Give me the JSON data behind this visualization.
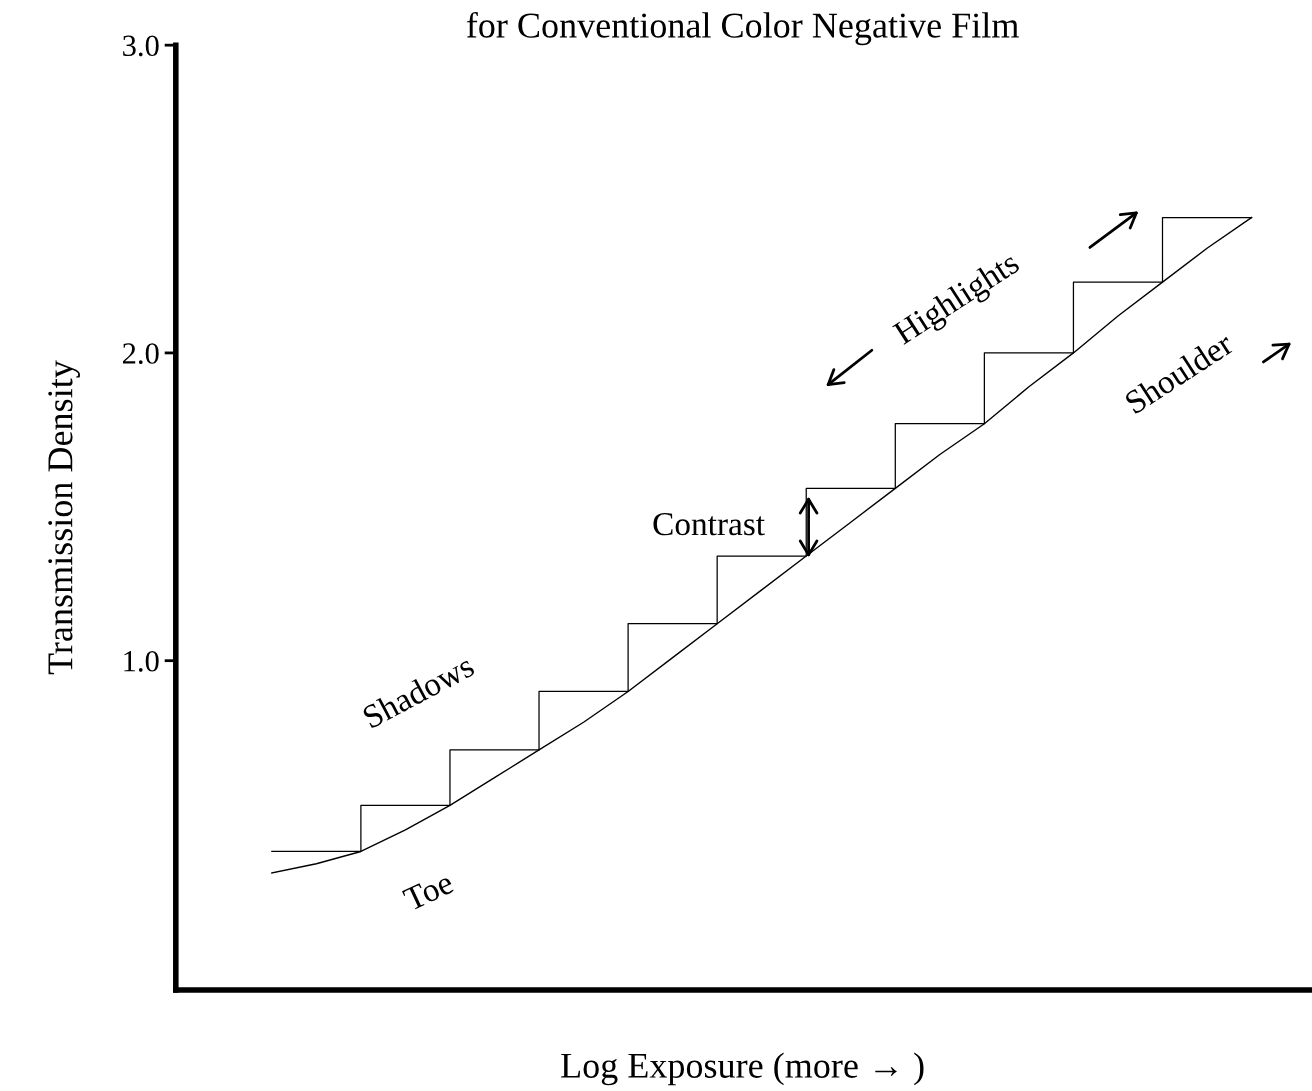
{
  "chart_data": {
    "type": "line",
    "title": "for Conventional Color Negative Film",
    "xlabel": "Log Exposure (more → )",
    "ylabel": "Transmission Density",
    "categories": [
      null,
      null,
      null,
      null,
      null,
      null,
      null,
      null,
      null,
      null,
      null,
      null,
      null,
      null,
      null,
      null,
      null,
      null,
      null,
      null,
      null,
      null,
      null
    ],
    "ylim": [
      -0.07,
      3.0
    ],
    "yticks": [
      {
        "value": 1.0,
        "label": "1.0"
      },
      {
        "value": 2.0,
        "label": "2.0"
      },
      {
        "value": 3.0,
        "label": "3.0"
      }
    ],
    "tick_labels": "y",
    "series": [
      {
        "color": "#000000",
        "values": [
          0.31,
          0.34,
          0.38,
          0.45,
          0.53,
          0.62,
          0.71,
          0.8,
          0.9,
          1.01,
          1.12,
          1.23,
          1.34,
          1.45,
          1.56,
          1.67,
          1.77,
          1.89,
          2.0,
          2.12,
          2.23,
          2.34,
          2.44
        ]
      },
      {
        "type": "step",
        "color": "#000000",
        "values": [
          0.38,
          0.38,
          0.53,
          0.53,
          0.71,
          0.71,
          0.9,
          0.9,
          1.12,
          1.12,
          1.34,
          1.34,
          1.56,
          1.56,
          1.77,
          1.77,
          2.0,
          2.0,
          2.23,
          2.23,
          2.44,
          2.44,
          2.44
        ]
      }
    ],
    "annotations": [
      "Toe",
      "Shadows",
      "Contrast",
      "Highlights",
      "Shoulder"
    ]
  }
}
